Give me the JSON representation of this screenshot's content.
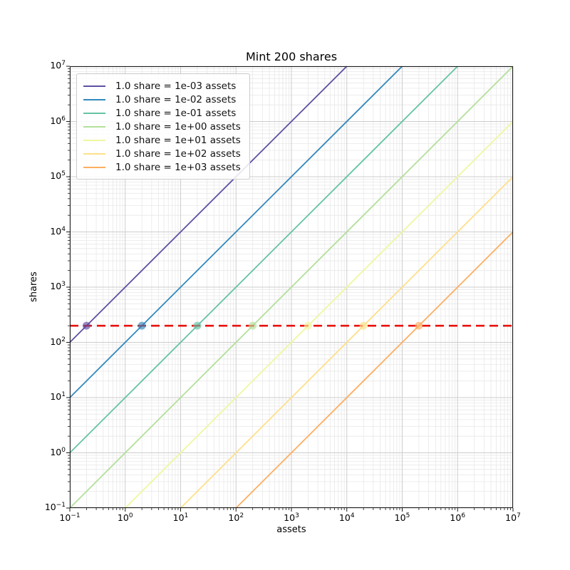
{
  "figure": {
    "title": "Mint 200 shares",
    "xlabel": "assets",
    "ylabel": "shares"
  },
  "chart_data": {
    "type": "line",
    "title": "Mint 200 shares",
    "xlabel": "assets",
    "ylabel": "shares",
    "xscale": "log",
    "yscale": "log",
    "xlim": [
      0.1,
      10000000
    ],
    "ylim": [
      0.1,
      10000000
    ],
    "x_tick_exponents": [
      -1,
      0,
      1,
      2,
      3,
      4,
      5,
      6,
      7
    ],
    "y_tick_exponents": [
      -1,
      0,
      1,
      2,
      3,
      4,
      5,
      6,
      7
    ],
    "grid": "both",
    "legend_position": "upper left",
    "shares_minted": 200,
    "series": [
      {
        "label": "1.0 share = 1e-03 assets",
        "rate": 0.001,
        "color": "#5e4fa2",
        "marker_at": {
          "assets": 0.2,
          "shares": 200
        }
      },
      {
        "label": "1.0 share = 1e-02 assets",
        "rate": 0.01,
        "color": "#3288bd",
        "marker_at": {
          "assets": 2,
          "shares": 200
        }
      },
      {
        "label": "1.0 share = 1e-01 assets",
        "rate": 0.1,
        "color": "#66c2a5",
        "marker_at": {
          "assets": 20,
          "shares": 200
        }
      },
      {
        "label": "1.0 share = 1e+00 assets",
        "rate": 1,
        "color": "#b2e09a",
        "marker_at": {
          "assets": 200,
          "shares": 200
        }
      },
      {
        "label": "1.0 share = 1e+01 assets",
        "rate": 10,
        "color": "#eff79f",
        "marker_at": {
          "assets": 2000,
          "shares": 200
        }
      },
      {
        "label": "1.0 share = 1e+02 assets",
        "rate": 100,
        "color": "#fee08b",
        "marker_at": {
          "assets": 20000,
          "shares": 200
        }
      },
      {
        "label": "1.0 share = 1e+03 assets",
        "rate": 1000,
        "color": "#fdae61",
        "marker_at": {
          "assets": 200000,
          "shares": 200
        }
      }
    ],
    "reference_line": {
      "y": 200,
      "color": "#e8100c",
      "style": "dashed"
    },
    "colors": {
      "grid_major": "#cdcdcd",
      "grid_minor": "#e8e8e8",
      "spine": "#1a1a1a",
      "tick": "#1a1a1a"
    }
  }
}
